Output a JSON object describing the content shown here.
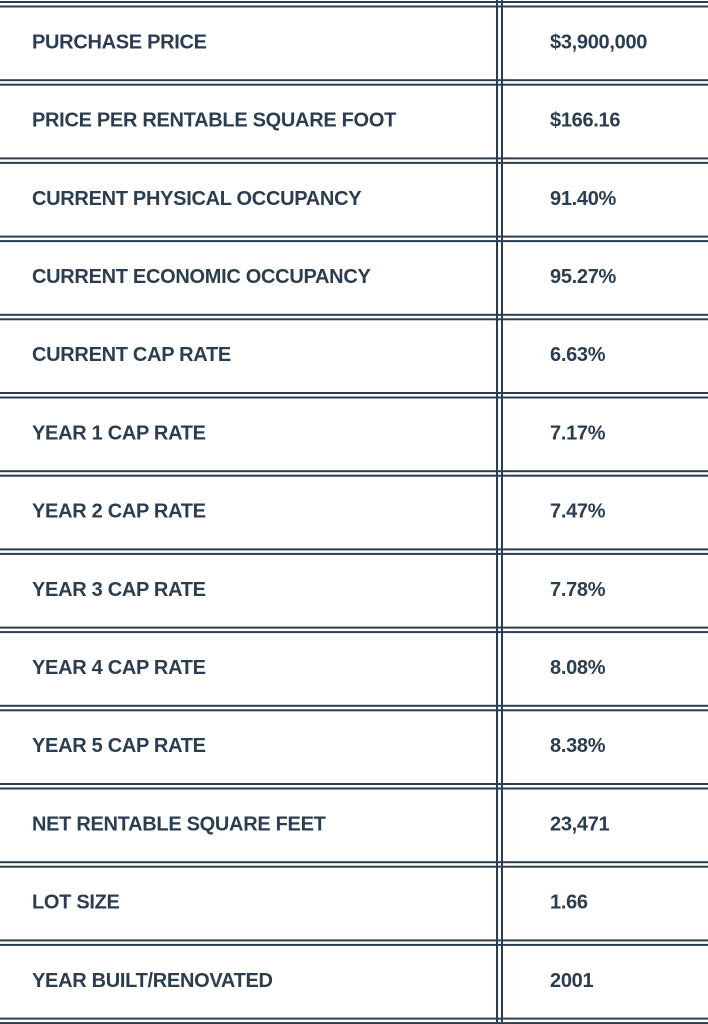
{
  "table": {
    "rows": [
      [
        "PURCHASE PRICE",
        "$3,900,000"
      ],
      [
        "PRICE PER RENTABLE SQUARE FOOT",
        "$166.16"
      ],
      [
        "CURRENT PHYSICAL OCCUPANCY",
        "91.40%"
      ],
      [
        "CURRENT ECONOMIC OCCUPANCY",
        "95.27%"
      ],
      [
        "CURRENT CAP RATE",
        "6.63%"
      ],
      [
        "YEAR 1 CAP RATE",
        "7.17%"
      ],
      [
        "YEAR 2 CAP RATE",
        "7.47%"
      ],
      [
        "YEAR 3 CAP RATE",
        "7.78%"
      ],
      [
        "YEAR 4 CAP RATE",
        "8.08%"
      ],
      [
        "YEAR 5 CAP RATE",
        "8.38%"
      ],
      [
        "NET RENTABLE SQUARE FEET",
        "23,471"
      ],
      [
        "LOT SIZE",
        "1.66"
      ],
      [
        "YEAR BUILT/RENOVATED",
        "2001"
      ]
    ]
  }
}
